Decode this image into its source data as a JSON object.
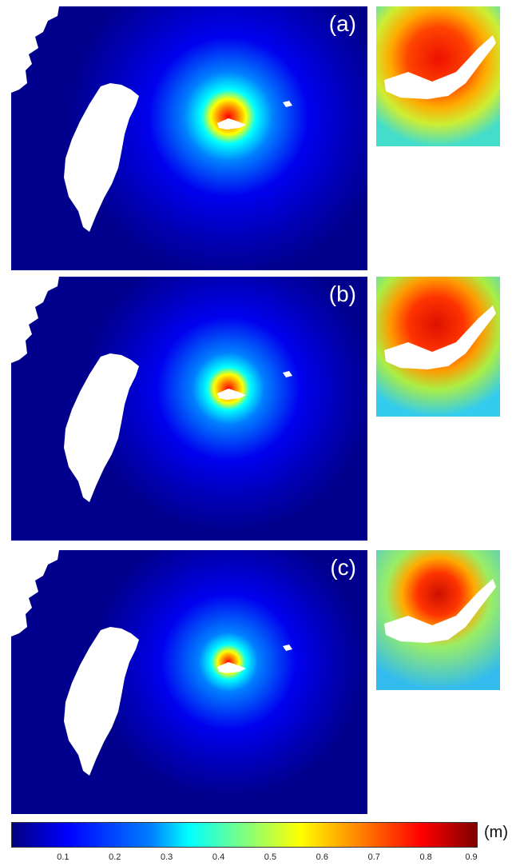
{
  "panels": [
    {
      "label": "(a)"
    },
    {
      "label": "(b)"
    },
    {
      "label": "(c)"
    }
  ],
  "colorbar": {
    "unit": "(m)",
    "ticks": [
      "0.1",
      "0.2",
      "0.3",
      "0.4",
      "0.5",
      "0.6",
      "0.7",
      "0.8",
      "0.9"
    ],
    "min": 0,
    "max": 0.9
  }
}
